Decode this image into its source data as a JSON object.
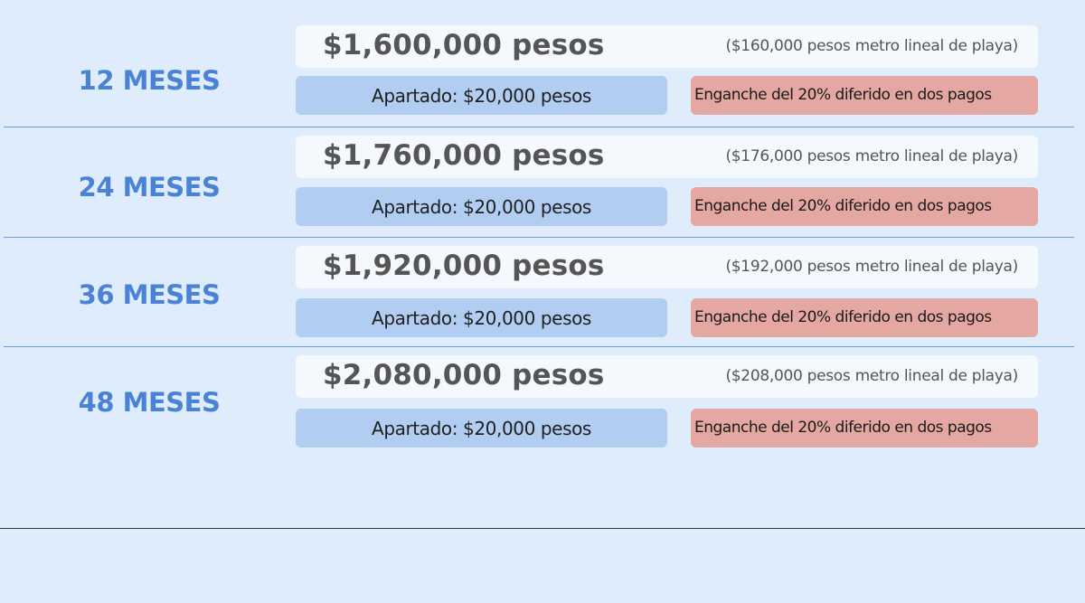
{
  "plans": [
    {
      "term": "12 MESES",
      "total_price": "$1,600,000 pesos",
      "price_per_meter": "($160,000 pesos metro  lineal de playa)",
      "deposit": "Apartado: $20,000 pesos",
      "down_payment": "Enganche del 20% diferido en dos pagos"
    },
    {
      "term": "24 MESES",
      "total_price": "$1,760,000 pesos",
      "price_per_meter": "($176,000 pesos metro lineal de playa)",
      "deposit": "Apartado: $20,000 pesos",
      "down_payment": "Enganche del 20% diferido en dos pagos"
    },
    {
      "term": "36 MESES",
      "total_price": "$1,920,000 pesos",
      "price_per_meter": "($192,000 pesos metro lineal de playa)",
      "deposit": "Apartado: $20,000 pesos",
      "down_payment": "Enganche del 20% diferido en dos pagos"
    },
    {
      "term": "48 MESES",
      "total_price": "$2,080,000 pesos",
      "price_per_meter": "($208,000 pesos metro lineal de playa)",
      "deposit": "Apartado: $20,000 pesos",
      "down_payment": "Enganche del 20% diferido en dos pagos"
    }
  ],
  "colors": {
    "background": "#dfecfb",
    "term_text": "#4a82d6",
    "price_card": "#f5f9fe",
    "deposit_box": "#b1cdf2",
    "down_payment_box": "#e4a7a2",
    "divider": "#6e9ddd"
  }
}
